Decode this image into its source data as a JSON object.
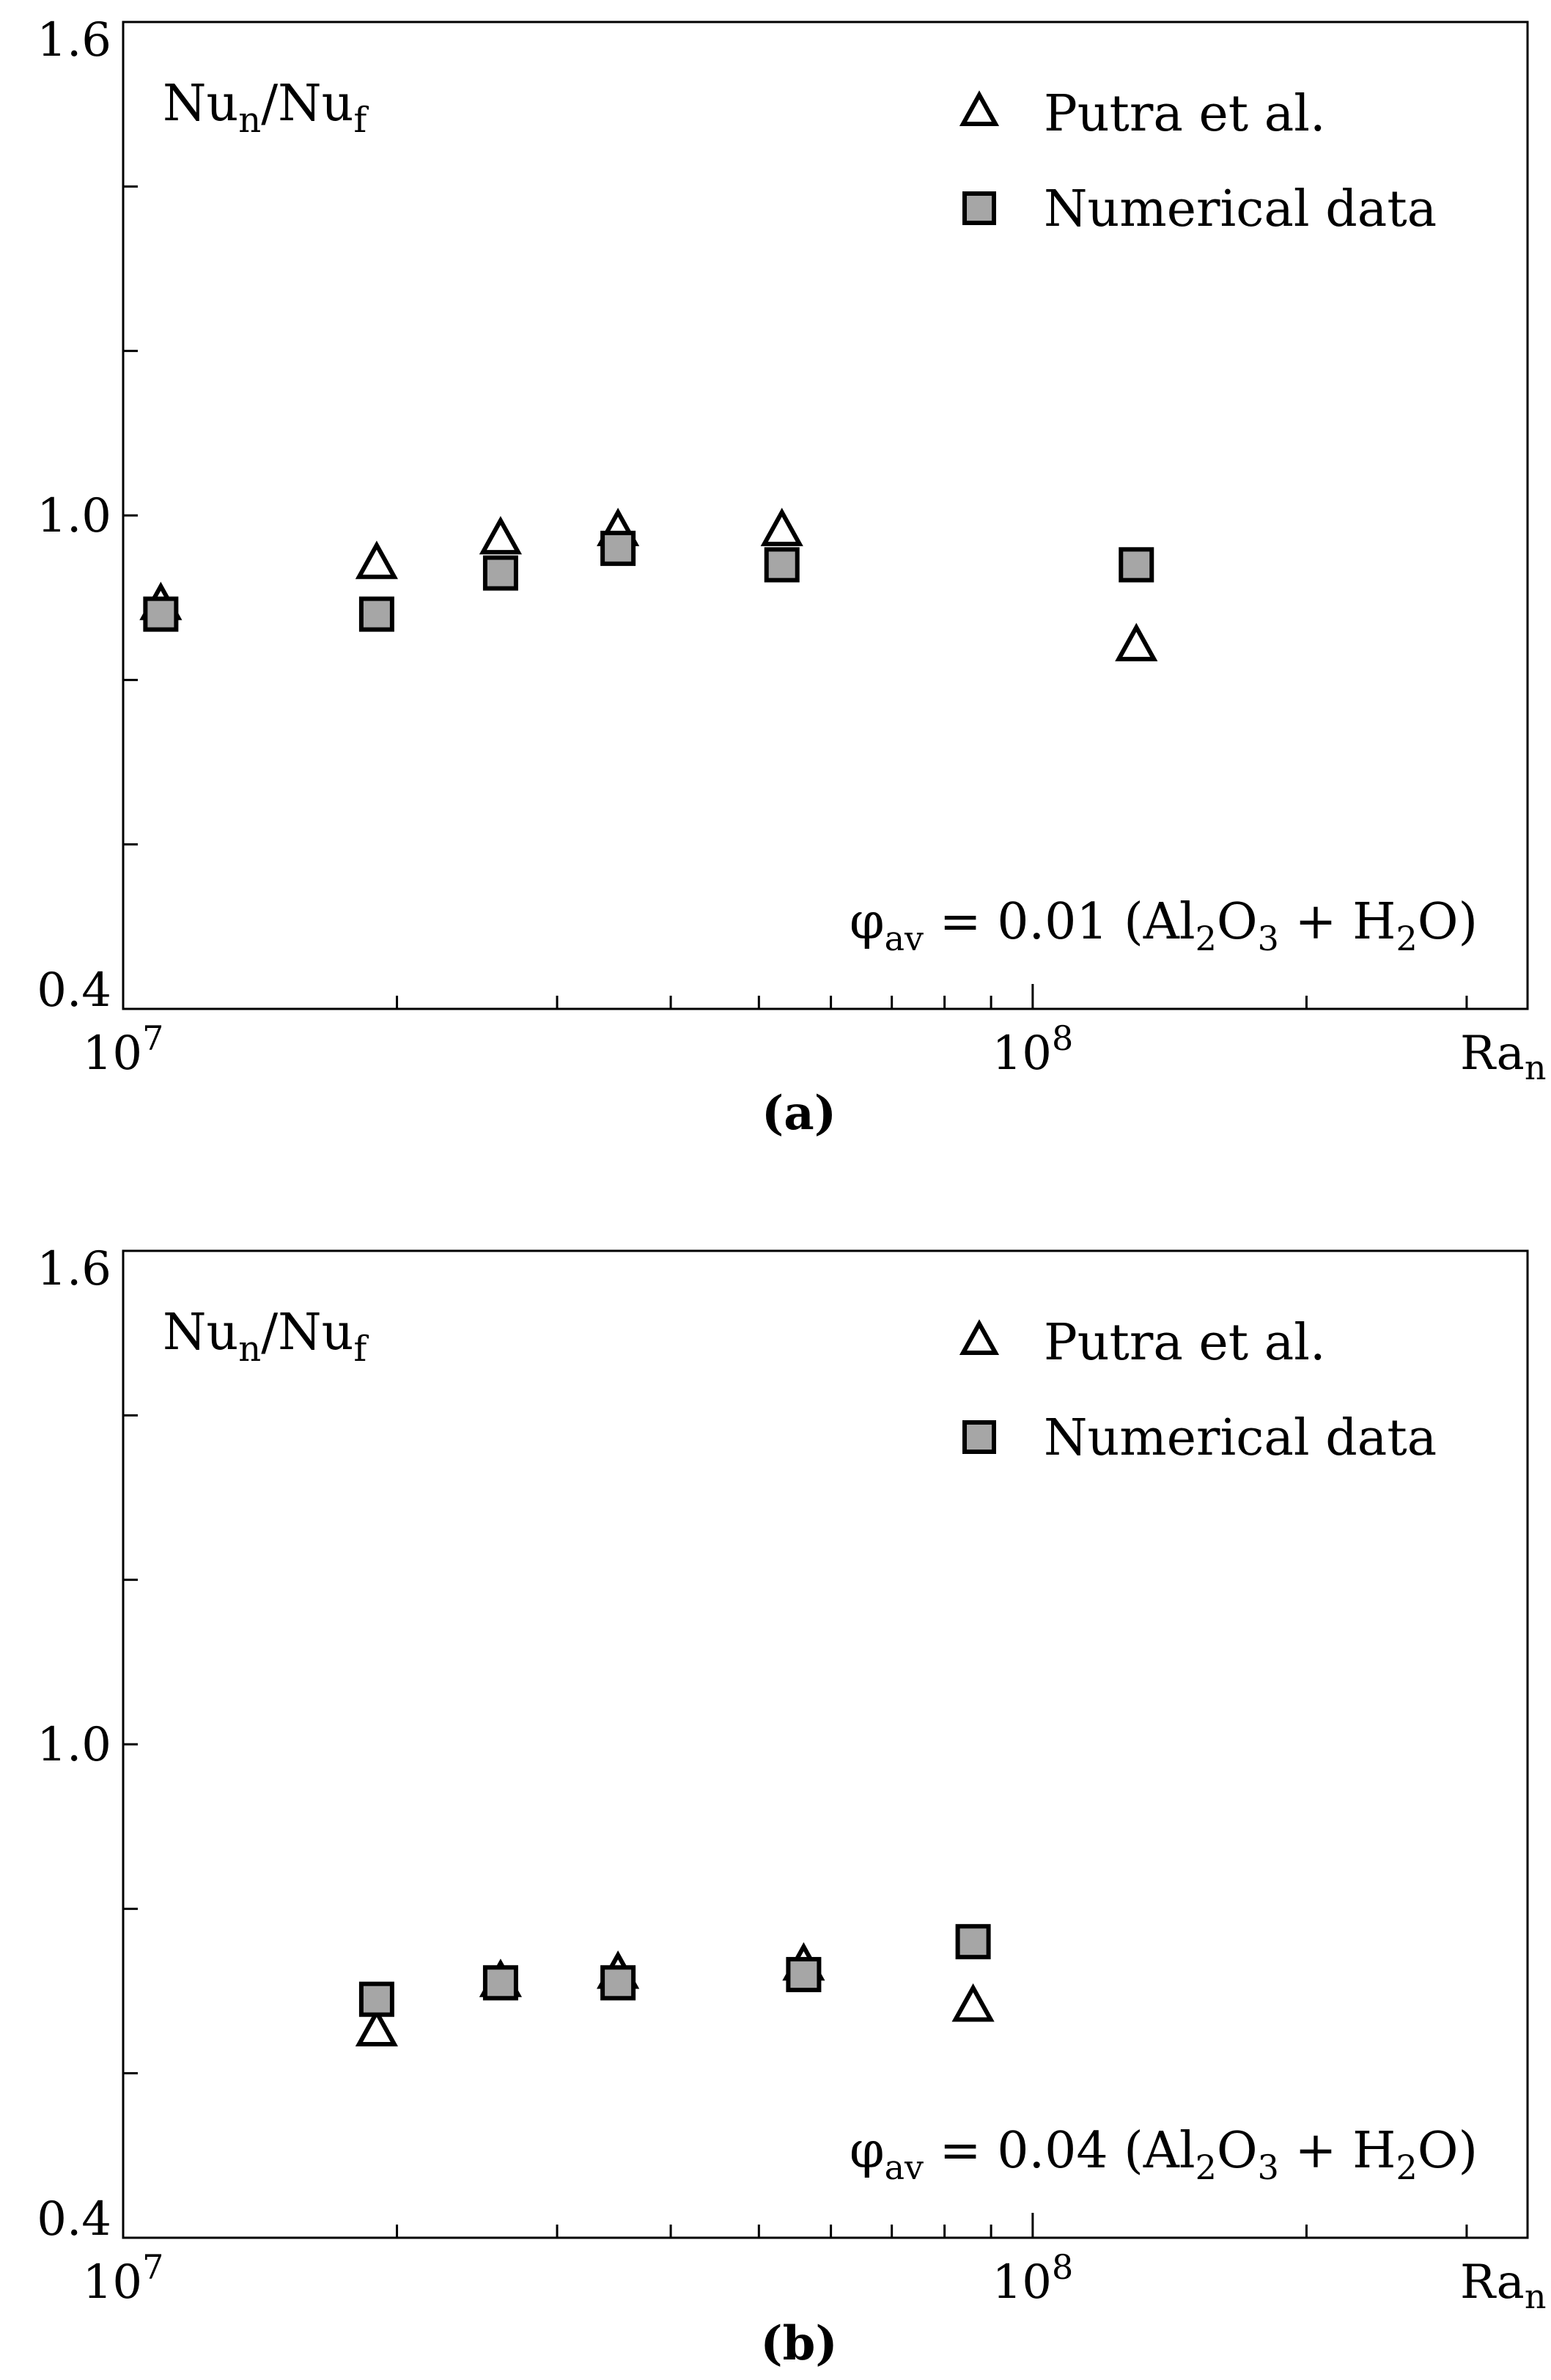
{
  "chart_data": [
    {
      "type": "scatter",
      "panel_label": "(a)",
      "xlabel": {
        "base": "Ra",
        "sub": "n"
      },
      "ylabel": {
        "parts": [
          "Nu",
          "n",
          "/Nu",
          "f"
        ]
      },
      "xscale": "log",
      "xlim": [
        10000000,
        350000000
      ],
      "ylim": [
        0.4,
        1.6
      ],
      "x_ticks_major": [
        {
          "value": 10000000,
          "base": "10",
          "exp": "7"
        },
        {
          "value": 100000000,
          "base": "10",
          "exp": "8"
        }
      ],
      "x_ticks_minor": [
        20000000,
        30000000,
        40000000,
        50000000,
        60000000,
        70000000,
        80000000,
        90000000,
        200000000,
        300000000
      ],
      "y_ticks": [
        {
          "value": 0.4,
          "label": "0.4"
        },
        {
          "value": 0.6,
          "label": ""
        },
        {
          "value": 0.8,
          "label": ""
        },
        {
          "value": 1.0,
          "label": "1.0"
        },
        {
          "value": 1.2,
          "label": ""
        },
        {
          "value": 1.4,
          "label": ""
        },
        {
          "value": 1.6,
          "label": "1.6"
        }
      ],
      "annotation": {
        "phi": "φ",
        "sub": "av",
        "value": " = 0.01 (Al",
        "s1": "2",
        "o": "O",
        "s2": "3",
        "plus": " + H",
        "s3": "2",
        "end": "O)"
      },
      "legend_position": "top-right",
      "series": [
        {
          "name": "Putra et al.",
          "marker": "triangle",
          "color": "#ffffff",
          "x": [
            11000000,
            19000000,
            26000000,
            35000000,
            53000000,
            130000000
          ],
          "y": [
            0.89,
            0.94,
            0.97,
            0.98,
            0.98,
            0.84
          ]
        },
        {
          "name": "Numerical data",
          "marker": "square",
          "color": "#a6a6a6",
          "x": [
            11000000,
            19000000,
            26000000,
            35000000,
            53000000,
            130000000
          ],
          "y": [
            0.88,
            0.88,
            0.93,
            0.96,
            0.94,
            0.94
          ]
        }
      ]
    },
    {
      "type": "scatter",
      "panel_label": "(b)",
      "xlabel": {
        "base": "Ra",
        "sub": "n"
      },
      "ylabel": {
        "parts": [
          "Nu",
          "n",
          "/Nu",
          "f"
        ]
      },
      "xscale": "log",
      "xlim": [
        10000000,
        350000000
      ],
      "ylim": [
        0.4,
        1.6
      ],
      "x_ticks_major": [
        {
          "value": 10000000,
          "base": "10",
          "exp": "7"
        },
        {
          "value": 100000000,
          "base": "10",
          "exp": "8"
        }
      ],
      "x_ticks_minor": [
        20000000,
        30000000,
        40000000,
        50000000,
        60000000,
        70000000,
        80000000,
        90000000,
        200000000,
        300000000
      ],
      "y_ticks": [
        {
          "value": 0.4,
          "label": "0.4"
        },
        {
          "value": 0.6,
          "label": ""
        },
        {
          "value": 0.8,
          "label": ""
        },
        {
          "value": 1.0,
          "label": "1.0"
        },
        {
          "value": 1.2,
          "label": ""
        },
        {
          "value": 1.4,
          "label": ""
        },
        {
          "value": 1.6,
          "label": "1.6"
        }
      ],
      "annotation": {
        "phi": "φ",
        "sub": "av",
        "value": " = 0.04 (Al",
        "s1": "2",
        "o": "O",
        "s2": "3",
        "plus": " + H",
        "s3": "2",
        "end": "O)"
      },
      "legend_position": "top-right",
      "series": [
        {
          "name": "Putra et al.",
          "marker": "triangle",
          "color": "#ffffff",
          "x": [
            19000000,
            26000000,
            35000000,
            56000000,
            86000000
          ],
          "y": [
            0.65,
            0.71,
            0.72,
            0.73,
            0.68
          ]
        },
        {
          "name": "Numerical data",
          "marker": "square",
          "color": "#a6a6a6",
          "x": [
            19000000,
            26000000,
            35000000,
            56000000,
            86000000
          ],
          "y": [
            0.69,
            0.71,
            0.71,
            0.72,
            0.76
          ]
        }
      ]
    }
  ]
}
